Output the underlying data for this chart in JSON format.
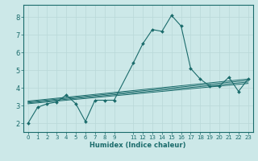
{
  "xlabel": "Humidex (Indice chaleur)",
  "background_color": "#cce8e8",
  "grid_color": "#b8d8d8",
  "line_color": "#1a6b6b",
  "xlim": [
    -0.5,
    23.5
  ],
  "ylim": [
    1.5,
    8.7
  ],
  "xtick_positions": [
    0,
    1,
    2,
    3,
    4,
    5,
    6,
    7,
    8,
    9,
    11,
    12,
    13,
    14,
    15,
    16,
    17,
    18,
    19,
    20,
    21,
    22,
    23
  ],
  "xtick_labels": [
    "0",
    "1",
    "2",
    "3",
    "4",
    "5",
    "6",
    "7",
    "8",
    "9",
    "11",
    "12",
    "13",
    "14",
    "15",
    "16",
    "17",
    "18",
    "19",
    "20",
    "21",
    "22",
    "23"
  ],
  "ytick_positions": [
    2,
    3,
    4,
    5,
    6,
    7,
    8
  ],
  "ytick_labels": [
    "2",
    "3",
    "4",
    "5",
    "6",
    "7",
    "8"
  ],
  "series": [
    [
      0,
      2.0
    ],
    [
      1,
      2.9
    ],
    [
      2,
      3.1
    ],
    [
      3,
      3.2
    ],
    [
      4,
      3.6
    ],
    [
      5,
      3.1
    ],
    [
      6,
      2.1
    ],
    [
      7,
      3.3
    ],
    [
      8,
      3.3
    ],
    [
      9,
      3.3
    ],
    [
      11,
      5.4
    ],
    [
      12,
      6.5
    ],
    [
      13,
      7.3
    ],
    [
      14,
      7.2
    ],
    [
      15,
      8.1
    ],
    [
      16,
      7.5
    ],
    [
      17,
      5.1
    ],
    [
      18,
      4.5
    ],
    [
      19,
      4.1
    ],
    [
      20,
      4.1
    ],
    [
      21,
      4.6
    ],
    [
      22,
      3.8
    ],
    [
      23,
      4.5
    ]
  ],
  "flat_series": [
    [
      [
        0,
        3.1
      ],
      [
        23,
        4.25
      ]
    ],
    [
      [
        0,
        3.15
      ],
      [
        23,
        4.33
      ]
    ],
    [
      [
        0,
        3.2
      ],
      [
        23,
        4.42
      ]
    ],
    [
      [
        0,
        3.25
      ],
      [
        23,
        4.5
      ]
    ]
  ]
}
